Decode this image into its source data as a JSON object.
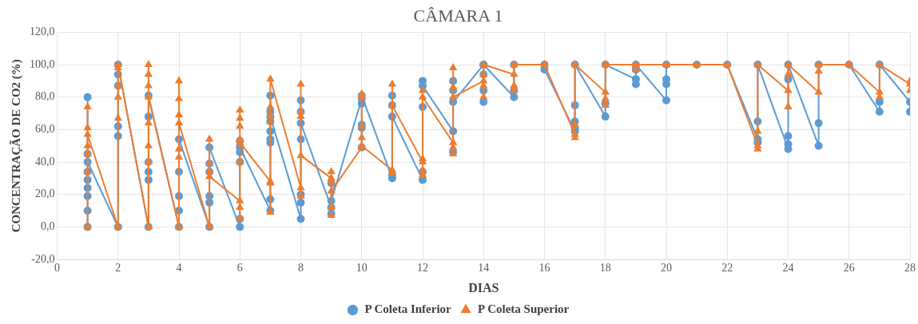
{
  "chart_data": {
    "type": "line",
    "title": "CÂMARA 1",
    "xlabel": "DIAS",
    "ylabel": "CONCENTRAÇÃO DE CO2 (%)",
    "xlim": [
      0,
      28
    ],
    "xticks": [
      0,
      2,
      4,
      6,
      8,
      10,
      12,
      14,
      16,
      18,
      20,
      22,
      24,
      26,
      28
    ],
    "ylim": [
      -20,
      120
    ],
    "yticks": [
      {
        "value": -20,
        "label": "-20,0"
      },
      {
        "value": 0,
        "label": "0,0"
      },
      {
        "value": 20,
        "label": "20,0"
      },
      {
        "value": 40,
        "label": "40,0"
      },
      {
        "value": 60,
        "label": "60,0"
      },
      {
        "value": 80,
        "label": "80,0"
      },
      {
        "value": 100,
        "label": "100,0"
      },
      {
        "value": 120,
        "label": "120,0"
      }
    ],
    "grid": true,
    "legend": "bottom",
    "line_style": "solid",
    "series": [
      {
        "name": "P Coleta Inferior",
        "color": "#5b9bd5",
        "marker": "circle",
        "x": [
          1,
          1,
          1,
          1,
          1,
          1,
          1,
          1,
          1,
          2,
          2,
          2,
          2,
          2,
          2,
          3,
          3,
          3,
          3,
          3,
          3,
          4,
          4,
          4,
          4,
          4,
          5,
          5,
          5,
          5,
          5,
          5,
          6,
          6,
          6,
          6,
          6,
          6,
          7,
          7,
          7,
          7,
          7,
          7,
          7,
          7,
          7,
          8,
          8,
          8,
          8,
          8,
          8,
          8,
          9,
          9,
          9,
          9,
          10,
          10,
          10,
          10,
          10,
          10,
          11,
          11,
          11,
          11,
          11,
          12,
          12,
          12,
          12,
          12,
          13,
          13,
          13,
          13,
          13,
          14,
          14,
          14,
          14,
          14,
          15,
          15,
          15,
          16,
          16,
          17,
          17,
          17,
          17,
          17,
          18,
          18,
          18,
          19,
          19,
          19,
          19,
          20,
          20,
          20,
          20,
          21,
          22,
          23,
          23,
          23,
          23,
          24,
          24,
          24,
          24,
          24,
          25,
          25,
          25,
          26,
          27,
          27,
          27,
          28,
          28
        ],
        "values": [
          80,
          45,
          34,
          29,
          24,
          19,
          10,
          0,
          40,
          0,
          56,
          62,
          87,
          94,
          100,
          0,
          29,
          34,
          40,
          68,
          81,
          0,
          10,
          19,
          34,
          54,
          0,
          15,
          19,
          34,
          39,
          49,
          0,
          5,
          40,
          46,
          53,
          49,
          10,
          17,
          52,
          54,
          59,
          65,
          71,
          81,
          68,
          5,
          15,
          20,
          54,
          71,
          78,
          64,
          12,
          8,
          27,
          16,
          79,
          49,
          61,
          63,
          76,
          81,
          30,
          32,
          75,
          81,
          68,
          29,
          34,
          74,
          90,
          87,
          59,
          46,
          84,
          90,
          77,
          100,
          77,
          84,
          94,
          100,
          80,
          84,
          100,
          100,
          97,
          59,
          61,
          65,
          75,
          100,
          68,
          76,
          100,
          91,
          88,
          97,
          100,
          78,
          88,
          91,
          100,
          100,
          100,
          54,
          52,
          65,
          100,
          48,
          51,
          56,
          91,
          100,
          50,
          64,
          100,
          100,
          71,
          77,
          100,
          77,
          71
        ]
      },
      {
        "name": "P Coleta Superior",
        "color": "#ed7d31",
        "marker": "triangle",
        "x": [
          1,
          1,
          1,
          1,
          1,
          1,
          1,
          2,
          2,
          2,
          2,
          2,
          2,
          3,
          3,
          3,
          3,
          3,
          3,
          3,
          3,
          4,
          4,
          4,
          4,
          4,
          4,
          4,
          5,
          5,
          5,
          5,
          5,
          6,
          6,
          6,
          6,
          6,
          6,
          6,
          6,
          6,
          7,
          7,
          7,
          7,
          7,
          7,
          7,
          8,
          8,
          8,
          8,
          8,
          8,
          9,
          9,
          9,
          9,
          9,
          9,
          10,
          10,
          10,
          10,
          10,
          10,
          11,
          11,
          11,
          11,
          12,
          12,
          12,
          12,
          12,
          12,
          13,
          13,
          13,
          13,
          13,
          13,
          14,
          14,
          14,
          14,
          14,
          15,
          15,
          15,
          15,
          16,
          17,
          17,
          17,
          17,
          18,
          18,
          18,
          18,
          19,
          19,
          19,
          20,
          21,
          22,
          23,
          23,
          23,
          23,
          24,
          24,
          24,
          24,
          25,
          25,
          25,
          26,
          27,
          27,
          27,
          28,
          28,
          28
        ],
        "values": [
          74,
          61,
          50,
          45,
          34,
          0,
          57,
          0,
          67,
          80,
          87,
          98,
          100,
          0,
          40,
          50,
          64,
          87,
          94,
          100,
          80,
          0,
          43,
          48,
          69,
          79,
          90,
          64,
          0,
          34,
          39,
          54,
          31,
          16,
          5,
          12,
          40,
          54,
          62,
          67,
          72,
          52,
          28,
          9,
          27,
          65,
          69,
          74,
          91,
          24,
          19,
          68,
          71,
          88,
          44,
          30,
          34,
          28,
          12,
          7,
          22,
          49,
          55,
          62,
          80,
          82,
          50,
          35,
          33,
          88,
          75,
          40,
          32,
          35,
          42,
          84,
          80,
          52,
          45,
          49,
          98,
          86,
          80,
          90,
          80,
          87,
          94,
          100,
          94,
          84,
          87,
          100,
          100,
          57,
          55,
          63,
          100,
          83,
          79,
          75,
          100,
          100,
          97,
          100,
          100,
          100,
          100,
          50,
          48,
          59,
          100,
          84,
          74,
          94,
          100,
          83,
          96,
          100,
          100,
          83,
          80,
          100,
          88,
          90,
          84
        ]
      }
    ]
  }
}
